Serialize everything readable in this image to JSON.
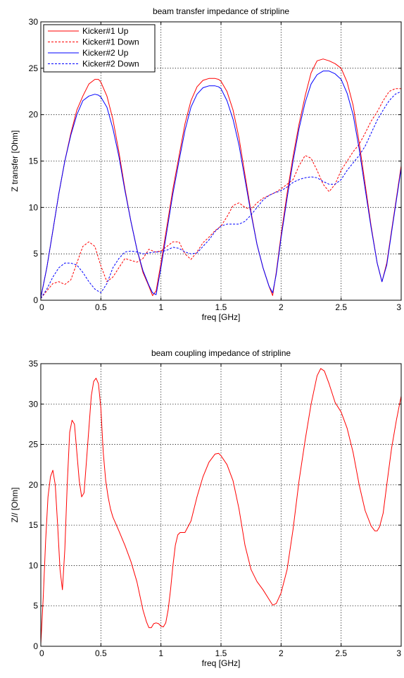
{
  "chart_data": [
    {
      "type": "line",
      "title": "beam transfer impedance of stripline",
      "xlabel": "freq [GHz]",
      "ylabel": "Z transfer [Ohm]",
      "xlim": [
        0,
        3
      ],
      "ylim": [
        0,
        30
      ],
      "xticks": [
        0,
        0.5,
        1,
        1.5,
        2,
        2.5,
        3
      ],
      "yticks": [
        0,
        5,
        10,
        15,
        20,
        25,
        30
      ],
      "xtick_labels": [
        "0",
        "0.5",
        "1",
        "1.5",
        "2",
        "2.5",
        "3"
      ],
      "ytick_labels": [
        "0",
        "5",
        "10",
        "15",
        "20",
        "25",
        "30"
      ],
      "grid": true,
      "legend_position": "top-left",
      "series": [
        {
          "name": "Kicker#1 Up",
          "color": "#ff0000",
          "style": "solid",
          "x": [
            0,
            0.05,
            0.1,
            0.15,
            0.2,
            0.25,
            0.3,
            0.35,
            0.4,
            0.45,
            0.48,
            0.5,
            0.55,
            0.6,
            0.65,
            0.7,
            0.75,
            0.8,
            0.85,
            0.9,
            0.93,
            0.96,
            1.0,
            1.05,
            1.1,
            1.15,
            1.2,
            1.25,
            1.3,
            1.35,
            1.4,
            1.45,
            1.48,
            1.5,
            1.55,
            1.6,
            1.65,
            1.7,
            1.75,
            1.8,
            1.85,
            1.9,
            1.93,
            1.96,
            2.0,
            2.05,
            2.1,
            2.15,
            2.2,
            2.25,
            2.3,
            2.35,
            2.4,
            2.45,
            2.5,
            2.55,
            2.6,
            2.65,
            2.7,
            2.75,
            2.8,
            2.84,
            2.88,
            2.92,
            2.96,
            3.0
          ],
          "y": [
            0.3,
            3.5,
            7.5,
            11.5,
            15,
            18,
            20.5,
            22,
            23.3,
            23.8,
            23.8,
            23.5,
            22,
            19.5,
            16,
            12,
            8.5,
            5.5,
            3,
            1.5,
            0.5,
            1,
            4,
            8,
            12,
            15.5,
            19,
            21.5,
            23,
            23.7,
            23.9,
            23.9,
            23.8,
            23.6,
            22.5,
            20.5,
            17.5,
            13.5,
            9.5,
            6,
            3.5,
            1.5,
            0.5,
            3,
            7,
            11.5,
            15.5,
            19,
            22,
            24.5,
            25.8,
            26,
            25.8,
            25.5,
            25,
            23.5,
            21,
            17,
            12.5,
            8,
            4,
            2,
            4,
            7.5,
            11,
            14.5
          ]
        },
        {
          "name": "Kicker#1 Down",
          "color": "#ff0000",
          "style": "dashed",
          "x": [
            0,
            0.05,
            0.1,
            0.15,
            0.2,
            0.25,
            0.3,
            0.35,
            0.4,
            0.45,
            0.5,
            0.55,
            0.6,
            0.65,
            0.7,
            0.75,
            0.8,
            0.85,
            0.9,
            0.95,
            1.0,
            1.05,
            1.1,
            1.15,
            1.2,
            1.25,
            1.3,
            1.35,
            1.4,
            1.45,
            1.5,
            1.55,
            1.6,
            1.65,
            1.7,
            1.75,
            1.8,
            1.85,
            1.9,
            1.95,
            2.0,
            2.05,
            2.1,
            2.15,
            2.2,
            2.25,
            2.3,
            2.35,
            2.4,
            2.45,
            2.5,
            2.55,
            2.6,
            2.65,
            2.7,
            2.75,
            2.8,
            2.85,
            2.9,
            2.95,
            3.0
          ],
          "y": [
            0.2,
            1,
            1.8,
            2,
            1.7,
            2.2,
            4,
            5.8,
            6.3,
            5.8,
            3.7,
            2,
            2.5,
            3.5,
            4.5,
            4.3,
            4.1,
            4.5,
            5.5,
            5.2,
            5.3,
            5.8,
            6.3,
            6.3,
            5,
            4.4,
            5.2,
            6.2,
            6.8,
            7.5,
            8,
            9,
            10.2,
            10.5,
            10,
            9.8,
            10.5,
            11,
            11.3,
            11.6,
            12,
            12.5,
            13,
            14.5,
            15.6,
            15.3,
            14,
            12.5,
            11.7,
            12.5,
            14,
            15,
            16,
            16.8,
            18,
            19.3,
            20.3,
            21.5,
            22.5,
            22.8,
            22.8
          ]
        },
        {
          "name": "Kicker#2 Up",
          "color": "#0000ff",
          "style": "solid",
          "x": [
            0,
            0.05,
            0.1,
            0.15,
            0.2,
            0.25,
            0.3,
            0.35,
            0.4,
            0.45,
            0.48,
            0.5,
            0.55,
            0.6,
            0.65,
            0.7,
            0.75,
            0.8,
            0.85,
            0.9,
            0.93,
            0.96,
            1.0,
            1.05,
            1.1,
            1.15,
            1.2,
            1.25,
            1.3,
            1.35,
            1.4,
            1.45,
            1.48,
            1.5,
            1.55,
            1.6,
            1.65,
            1.7,
            1.75,
            1.8,
            1.85,
            1.9,
            1.93,
            1.96,
            2.0,
            2.05,
            2.1,
            2.15,
            2.2,
            2.25,
            2.3,
            2.35,
            2.4,
            2.45,
            2.5,
            2.55,
            2.6,
            2.65,
            2.7,
            2.75,
            2.8,
            2.84,
            2.88,
            2.92,
            2.96,
            3.0
          ],
          "y": [
            0.3,
            3.5,
            7.5,
            11.5,
            15,
            17.8,
            20,
            21.5,
            22,
            22.2,
            22.1,
            21.9,
            20.8,
            18.5,
            15.5,
            11.8,
            8.5,
            5.5,
            3.2,
            1.6,
            0.8,
            0.6,
            3.5,
            7.5,
            11.5,
            15,
            18.3,
            20.8,
            22.2,
            22.9,
            23.1,
            23.1,
            23,
            22.8,
            21.5,
            19.5,
            16.7,
            13,
            9.3,
            6,
            3.5,
            1.5,
            0.8,
            2.8,
            6.7,
            11,
            15,
            18.5,
            21.3,
            23.3,
            24.3,
            24.7,
            24.7,
            24.4,
            23.8,
            22.3,
            20,
            16.3,
            12,
            7.8,
            4,
            2,
            3.8,
            7.3,
            10.8,
            14.2
          ]
        },
        {
          "name": "Kicker#2 Down",
          "color": "#0000ff",
          "style": "dashed",
          "x": [
            0,
            0.05,
            0.1,
            0.15,
            0.2,
            0.25,
            0.3,
            0.35,
            0.4,
            0.45,
            0.5,
            0.55,
            0.6,
            0.65,
            0.7,
            0.75,
            0.8,
            0.85,
            0.9,
            0.95,
            1.0,
            1.05,
            1.1,
            1.15,
            1.2,
            1.25,
            1.3,
            1.35,
            1.4,
            1.45,
            1.5,
            1.55,
            1.6,
            1.65,
            1.7,
            1.75,
            1.8,
            1.85,
            1.9,
            1.95,
            2.0,
            2.05,
            2.1,
            2.15,
            2.2,
            2.25,
            2.3,
            2.35,
            2.4,
            2.45,
            2.5,
            2.55,
            2.6,
            2.65,
            2.7,
            2.75,
            2.8,
            2.85,
            2.9,
            2.95,
            3.0
          ],
          "y": [
            0.2,
            1.2,
            2.5,
            3.5,
            4,
            4,
            3.8,
            3,
            2,
            1.2,
            0.8,
            1.8,
            3.5,
            4.5,
            5.2,
            5.3,
            5.2,
            5,
            5.1,
            5.2,
            5.2,
            5.4,
            5.7,
            5.6,
            5.2,
            5,
            5.1,
            5.8,
            6.5,
            7.4,
            8,
            8.2,
            8.2,
            8.2,
            8.5,
            9.2,
            10,
            10.8,
            11.3,
            11.6,
            11.8,
            12.2,
            12.7,
            13,
            13.2,
            13.3,
            13.2,
            12.8,
            12.5,
            12.5,
            13,
            14,
            14.8,
            15.6,
            16.6,
            18,
            19.4,
            20.5,
            21.5,
            22.2,
            22.5
          ]
        }
      ]
    },
    {
      "type": "line",
      "title": "beam coupling impedance of stripline",
      "xlabel": "freq [GHz]",
      "ylabel": "Z// [Ohm]",
      "xlim": [
        0,
        3
      ],
      "ylim": [
        0,
        35
      ],
      "xticks": [
        0,
        0.5,
        1,
        1.5,
        2,
        2.5,
        3
      ],
      "yticks": [
        0,
        5,
        10,
        15,
        20,
        25,
        30,
        35
      ],
      "xtick_labels": [
        "0",
        "0.5",
        "1",
        "1.5",
        "2",
        "2.5",
        "3"
      ],
      "ytick_labels": [
        "0",
        "5",
        "10",
        "15",
        "20",
        "25",
        "30",
        "35"
      ],
      "grid": true,
      "series": [
        {
          "color": "#ff0000",
          "style": "solid",
          "x": [
            0,
            0.02,
            0.04,
            0.06,
            0.08,
            0.1,
            0.12,
            0.14,
            0.16,
            0.18,
            0.2,
            0.22,
            0.24,
            0.26,
            0.28,
            0.3,
            0.32,
            0.34,
            0.36,
            0.38,
            0.4,
            0.42,
            0.44,
            0.46,
            0.48,
            0.5,
            0.52,
            0.54,
            0.56,
            0.58,
            0.6,
            0.65,
            0.7,
            0.75,
            0.8,
            0.85,
            0.88,
            0.9,
            0.92,
            0.94,
            0.96,
            0.98,
            1.0,
            1.02,
            1.04,
            1.06,
            1.08,
            1.1,
            1.12,
            1.14,
            1.16,
            1.18,
            1.2,
            1.25,
            1.3,
            1.35,
            1.4,
            1.45,
            1.48,
            1.5,
            1.55,
            1.6,
            1.65,
            1.7,
            1.75,
            1.8,
            1.85,
            1.9,
            1.93,
            1.96,
            2.0,
            2.05,
            2.1,
            2.15,
            2.2,
            2.25,
            2.3,
            2.33,
            2.36,
            2.4,
            2.45,
            2.5,
            2.55,
            2.6,
            2.65,
            2.7,
            2.75,
            2.78,
            2.8,
            2.82,
            2.85,
            2.88,
            2.92,
            2.96,
            3.0
          ],
          "y": [
            0.3,
            6,
            13,
            18.5,
            21,
            21.8,
            20,
            15,
            9.5,
            7,
            12,
            20,
            26.5,
            28,
            27.5,
            24,
            20.5,
            18.5,
            19,
            23,
            27,
            31,
            32.8,
            33.2,
            32.5,
            29.5,
            24,
            20.5,
            18.5,
            17,
            16,
            14.3,
            12.5,
            10.5,
            8,
            4.5,
            3,
            2.3,
            2.3,
            2.8,
            2.9,
            2.8,
            2.5,
            2.4,
            2.9,
            4.5,
            7,
            10,
            12.5,
            13.8,
            14.1,
            14.1,
            14.1,
            15.5,
            18.5,
            21,
            22.8,
            23.8,
            23.9,
            23.6,
            22.5,
            20.5,
            17,
            12.5,
            9.5,
            8,
            7,
            5.8,
            5.1,
            5.3,
            6.6,
            9.5,
            14.5,
            20.5,
            25.5,
            30,
            33.5,
            34.4,
            34.1,
            32.5,
            30.2,
            29,
            27,
            24,
            20,
            16.8,
            14.9,
            14.3,
            14.3,
            14.8,
            16.5,
            20,
            24.5,
            28,
            31
          ]
        }
      ]
    }
  ]
}
